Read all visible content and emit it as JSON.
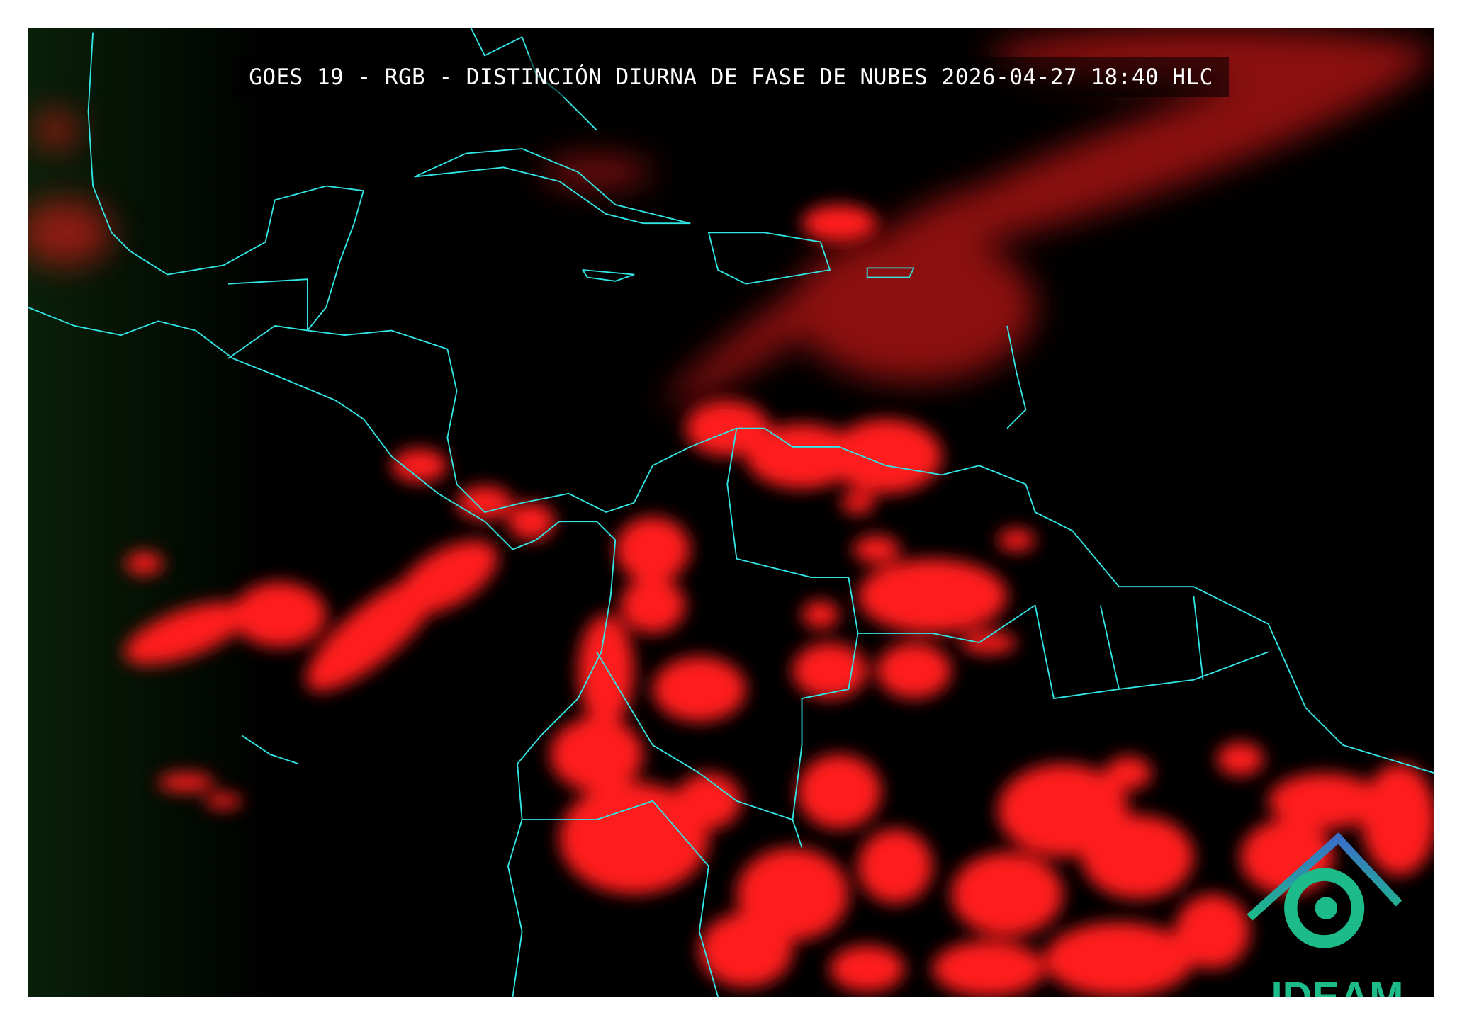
{
  "title": "GOES 19 - RGB - DISTINCIÓN DIURNA DE FASE DE NUBES 2026-04-27 18:40 HLC",
  "logo": {
    "text": "IDEAM",
    "color": "#1dbb8a",
    "roof_color": "#3a7fc4"
  },
  "colors": {
    "background": "#000000",
    "clouds": "#ff1a1a",
    "coastlines": "#33e6e6",
    "vegetation": "#0b2a0b"
  }
}
